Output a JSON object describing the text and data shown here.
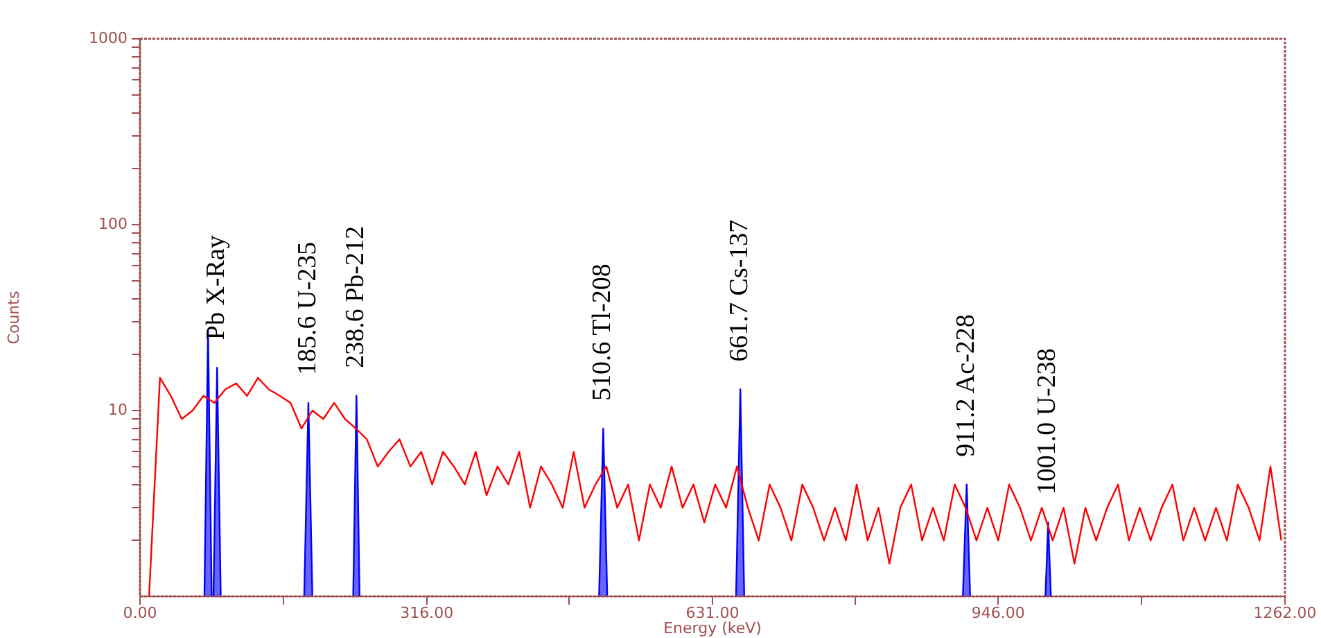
{
  "chart_data": {
    "type": "line",
    "xlabel": "Energy (keV)",
    "ylabel": "Counts",
    "log": "y",
    "grid": false,
    "legend": false,
    "marker": "none",
    "line_style": "solid",
    "xlim": [
      0,
      1262
    ],
    "ylim": [
      1,
      1000
    ],
    "xticks": [
      {
        "value": 0,
        "label": "0.00"
      },
      {
        "value": 158,
        "label": null
      },
      {
        "value": 316,
        "label": "316.00"
      },
      {
        "value": 473,
        "label": null
      },
      {
        "value": 631,
        "label": "631.00"
      },
      {
        "value": 788,
        "label": null
      },
      {
        "value": 946,
        "label": "946.00"
      },
      {
        "value": 1104,
        "label": null
      },
      {
        "value": 1262,
        "label": "1262.00"
      }
    ],
    "yticks": [
      {
        "value": 2,
        "label": null
      },
      {
        "value": 3,
        "label": null
      },
      {
        "value": 4,
        "label": null
      },
      {
        "value": 5,
        "label": null
      },
      {
        "value": 6,
        "label": null
      },
      {
        "value": 7,
        "label": null
      },
      {
        "value": 8,
        "label": null
      },
      {
        "value": 9,
        "label": null
      },
      10,
      {
        "value": 20,
        "label": null
      },
      {
        "value": 30,
        "label": null
      },
      {
        "value": 40,
        "label": null
      },
      {
        "value": 50,
        "label": null
      },
      {
        "value": 60,
        "label": null
      },
      {
        "value": 70,
        "label": null
      },
      {
        "value": 80,
        "label": null
      },
      {
        "value": 90,
        "label": null
      },
      100,
      {
        "value": 200,
        "label": null
      },
      {
        "value": 300,
        "label": null
      },
      {
        "value": 400,
        "label": null
      },
      {
        "value": 500,
        "label": null
      },
      {
        "value": 600,
        "label": null
      },
      {
        "value": 700,
        "label": null
      },
      {
        "value": 800,
        "label": null
      },
      {
        "value": 900,
        "label": null
      },
      1000
    ],
    "series": [
      {
        "type": "line",
        "color": "#ff0000",
        "x": [
          10,
          22,
          34,
          46,
          58,
          70,
          82,
          94,
          106,
          118,
          130,
          142,
          154,
          166,
          178,
          190,
          202,
          214,
          226,
          238,
          250,
          262,
          274,
          286,
          298,
          310,
          322,
          334,
          346,
          358,
          370,
          382,
          394,
          406,
          418,
          430,
          442,
          454,
          466,
          478,
          490,
          502,
          514,
          526,
          538,
          550,
          562,
          574,
          586,
          598,
          610,
          622,
          634,
          646,
          658,
          670,
          682,
          694,
          706,
          718,
          730,
          742,
          754,
          766,
          778,
          790,
          802,
          814,
          826,
          838,
          850,
          862,
          874,
          886,
          898,
          910,
          922,
          934,
          946,
          958,
          970,
          982,
          994,
          1006,
          1018,
          1030,
          1042,
          1054,
          1066,
          1078,
          1090,
          1102,
          1114,
          1126,
          1138,
          1150,
          1162,
          1174,
          1186,
          1198,
          1210,
          1222,
          1234,
          1246,
          1258
        ],
        "values": [
          1,
          15,
          12,
          9,
          10,
          12,
          11,
          13,
          14,
          12,
          15,
          13,
          12,
          11,
          8,
          10,
          9,
          11,
          9,
          8,
          7,
          5,
          6,
          7,
          5,
          6,
          4,
          6,
          5,
          4,
          6,
          3.5,
          5,
          4,
          6,
          3,
          5,
          4,
          3,
          6,
          3,
          4,
          5,
          3,
          4,
          2,
          4,
          3,
          5,
          3,
          4,
          2.5,
          4,
          3,
          5,
          3,
          2,
          4,
          3,
          2,
          4,
          3,
          2,
          3,
          2,
          4,
          2,
          3,
          1.5,
          3,
          4,
          2,
          3,
          2,
          4,
          3,
          2,
          3,
          2,
          4,
          3,
          2,
          3,
          2,
          3,
          1.5,
          3,
          2,
          3,
          4,
          2,
          3,
          2,
          3,
          4,
          2,
          3,
          2,
          3,
          2,
          4,
          3,
          2,
          5,
          2
        ]
      },
      {
        "type": "area",
        "color": "#0000ff",
        "x": [
          71,
          75,
          79,
          81,
          85,
          89,
          90,
          181,
          185.6,
          190,
          191,
          235,
          238.6,
          242,
          243,
          506,
          510.6,
          515,
          516,
          657,
          661.7,
          666,
          667,
          907,
          911.2,
          915,
          916,
          998,
          1001,
          1004
        ],
        "values": [
          1,
          27,
          1,
          1,
          17,
          1,
          null,
          1,
          11,
          1,
          null,
          1,
          12,
          1,
          null,
          1,
          8,
          1,
          null,
          1,
          13,
          1,
          null,
          1,
          4,
          1,
          null,
          1,
          2.5,
          1
        ]
      }
    ],
    "annotations": [
      {
        "text": "Pb X-Ray",
        "x": 85,
        "y": 17
      },
      {
        "text": "185.6 U-235",
        "x": 185.6,
        "y": 11
      },
      {
        "text": "238.6 Pb-212",
        "x": 238.6,
        "y": 12
      },
      {
        "text": "510.6 Tl-208",
        "x": 510.6,
        "y": 8
      },
      {
        "text": "661.7 Cs-137",
        "x": 661.7,
        "y": 13
      },
      {
        "text": "911.2 Ac-228",
        "x": 911.2,
        "y": 4
      },
      {
        "text": "1001.0 U-238",
        "x": 1001,
        "y": 2.5
      }
    ]
  }
}
